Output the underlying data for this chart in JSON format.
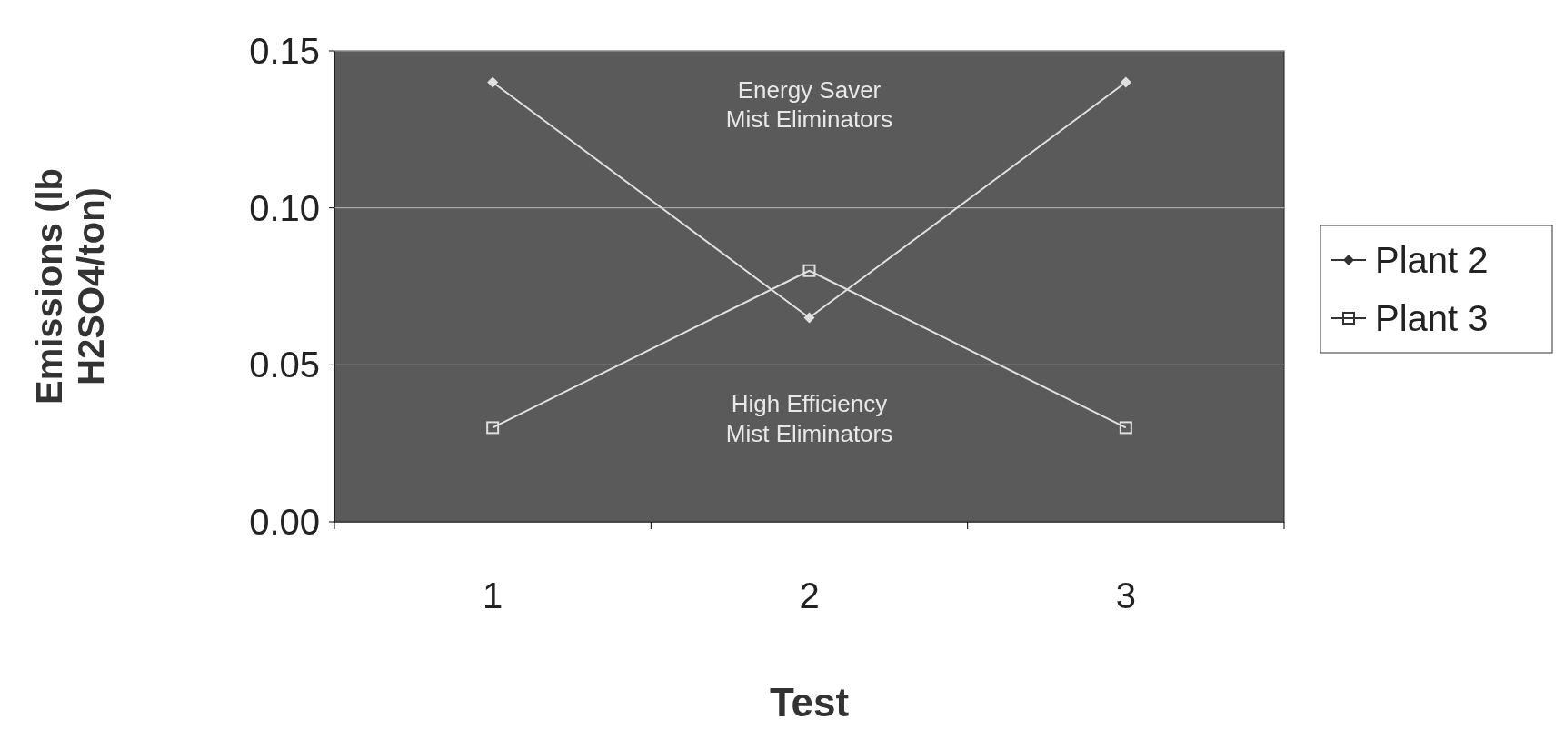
{
  "chart_data": {
    "type": "line",
    "xlabel": "Test",
    "ylabel": "Emissions (lb\nH2SO4/ton)",
    "categories": [
      "1",
      "2",
      "3"
    ],
    "series": [
      {
        "name": "Plant 2",
        "color": "#e0e0e0",
        "values": [
          0.14,
          0.065,
          0.14
        ],
        "marker": "diamond"
      },
      {
        "name": "Plant 3",
        "color": "#e0e0e0",
        "values": [
          0.03,
          0.08,
          0.03
        ],
        "marker": "square"
      }
    ],
    "ylim": [
      0,
      0.15
    ],
    "yticks": [
      {
        "value": 0,
        "label": "0.00"
      },
      {
        "value": 0.05,
        "label": "0.05"
      },
      {
        "value": 0.1,
        "label": "0.10"
      },
      {
        "value": 0.15,
        "label": "0.15"
      }
    ],
    "grid": "y",
    "legend": "right",
    "annotations": [
      "Energy Saver\nMist Eliminators",
      "High Efficiency\nMist Eliminators"
    ]
  }
}
